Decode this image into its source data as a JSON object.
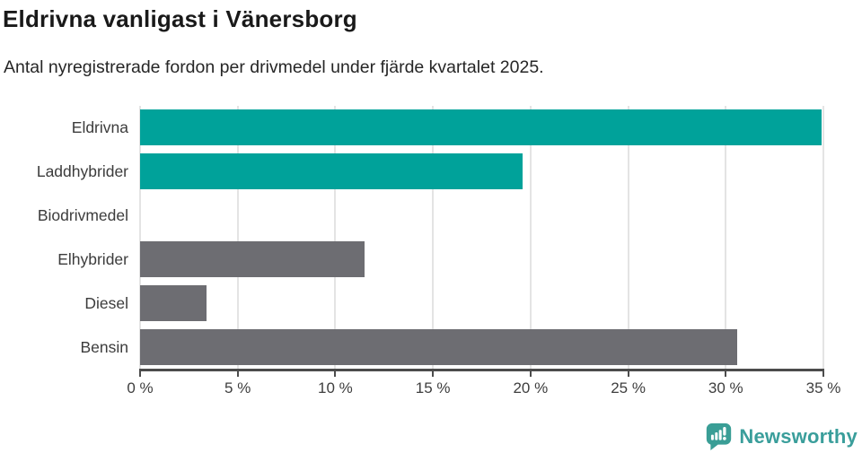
{
  "header": {
    "title": "Eldrivna vanligast i Vänersborg",
    "subtitle": "Antal nyregistrerade fordon per drivmedel under fjärde kvartalet 2025."
  },
  "chart_data": {
    "type": "bar",
    "orientation": "horizontal",
    "title": "Eldrivna vanligast i Vänersborg",
    "subtitle": "Antal nyregistrerade fordon per drivmedel under fjärde kvartalet 2025.",
    "categories": [
      "Eldrivna",
      "Laddhybrider",
      "Biodrivmedel",
      "Elhybrider",
      "Diesel",
      "Bensin"
    ],
    "values": [
      34.9,
      19.6,
      0,
      11.5,
      3.4,
      30.6
    ],
    "unit": "%",
    "bar_colors": [
      "#00a29a",
      "#00a29a",
      "#6d6d72",
      "#6d6d72",
      "#6d6d72",
      "#6d6d72"
    ],
    "highlight_color": "#00a29a",
    "default_color": "#6d6d72",
    "xlim": [
      0,
      35
    ],
    "x_ticks": [
      0,
      5,
      10,
      15,
      20,
      25,
      30,
      35
    ],
    "x_tick_labels": [
      "0 %",
      "5 %",
      "10 %",
      "15 %",
      "20 %",
      "25 %",
      "30 %",
      "35 %"
    ],
    "grid": true,
    "legend": false,
    "xlabel": "",
    "ylabel": ""
  },
  "footer": {
    "brand": "Newsworthy",
    "brand_color": "#3a9e9b",
    "logo_icon": "newsworthy-chart-bubble-icon"
  }
}
